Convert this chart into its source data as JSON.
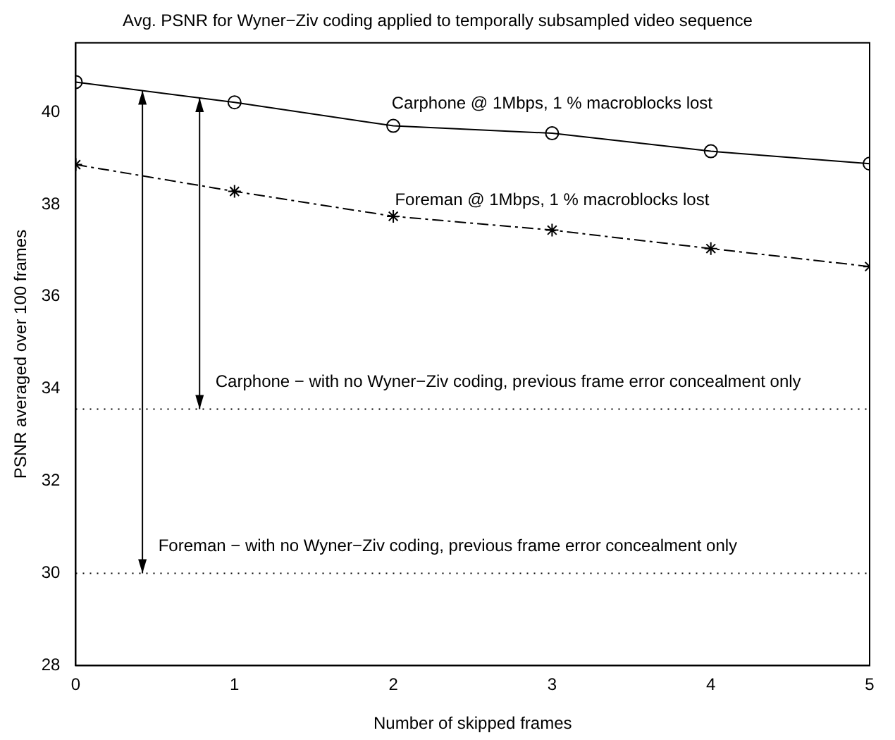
{
  "chart_data": {
    "type": "line",
    "title": "Avg. PSNR for Wyner−Ziv coding applied to temporally subsampled video sequence",
    "xlabel": "Number of skipped frames",
    "ylabel": "PSNR averaged over 100 frames",
    "x": [
      0,
      1,
      2,
      3,
      4,
      5
    ],
    "xlim": [
      0,
      5
    ],
    "xticks": [
      0,
      1,
      2,
      3,
      4,
      5
    ],
    "ylim": [
      28,
      41.5
    ],
    "yticks": [
      28,
      30,
      32,
      34,
      36,
      38,
      40
    ],
    "grid": false,
    "legend": false,
    "series": [
      {
        "name": "Carphone @ 1Mbps, 1 % macroblocks lost",
        "color": "#000000",
        "marker": "circle",
        "line_style": "solid",
        "values": [
          40.65,
          40.21,
          39.7,
          39.54,
          39.15,
          38.88
        ]
      },
      {
        "name": "Foreman @ 1Mbps, 1 % macroblocks lost",
        "color": "#000000",
        "marker": "cross",
        "line_style": "dashed",
        "values": [
          38.86,
          38.28,
          37.74,
          37.44,
          37.04,
          36.65
        ]
      }
    ],
    "ref_lines": [
      {
        "axis": "y",
        "value": 33.56,
        "color": "#000000",
        "line_style": "dotted",
        "label": "Carphone − with no Wyner−Ziv coding, previous frame error concealment only"
      },
      {
        "axis": "y",
        "value": 30,
        "color": "#000000",
        "line_style": "dotted",
        "label": "Foreman − with no Wyner−Ziv coding, previous frame error concealment only"
      }
    ]
  }
}
